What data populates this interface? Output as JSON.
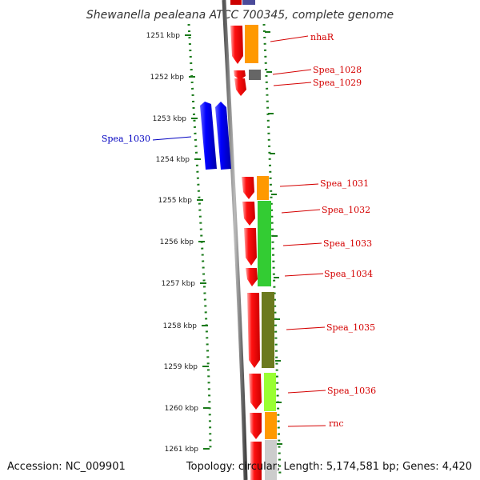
{
  "title": "Shewanella pealeana ATCC 700345, complete genome",
  "accession": "Accession: NC_009901",
  "summary": "Topology: circular; Length: 5,174,581 bp; Genes: 4,420",
  "ruler": [
    "1251 kbp",
    "1252 kbp",
    "1253 kbp",
    "1254 kbp",
    "1255 kbp",
    "1256 kbp",
    "1257 kbp",
    "1258 kbp",
    "1259 kbp",
    "1260 kbp",
    "1261 kbp"
  ],
  "genes": {
    "nhaR": "nhaR",
    "spea_1028": "Spea_1028",
    "spea_1029": "Spea_1029",
    "spea_1030": "Spea_1030",
    "spea_1031": "Spea_1031",
    "spea_1032": "Spea_1032",
    "spea_1033": "Spea_1033",
    "spea_1034": "Spea_1034",
    "spea_1035": "Spea_1035",
    "spea_1036": "Spea_1036",
    "rnc": "rnc"
  },
  "colors": {
    "forward_gene": "#ff0000",
    "reverse_gene": "#0000ff",
    "label_red": "#d40000",
    "label_blue": "#0000c0",
    "tick_green": "#1a7a1a",
    "cog_orange": "#ff9900",
    "cog_gray": "#666666",
    "cog_green": "#33cc33",
    "cog_olive": "#6b7a1e",
    "cog_lime": "#99ff33",
    "cog_lightgray": "#cccccc",
    "cog_navy": "#4a4a99"
  }
}
